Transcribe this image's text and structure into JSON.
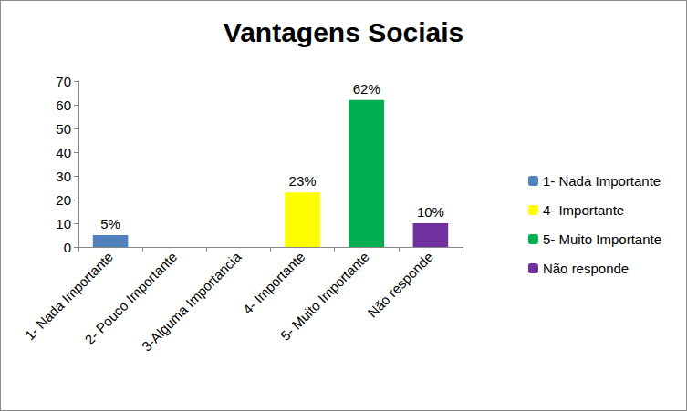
{
  "chart_data": {
    "type": "bar",
    "title": "Vantagens Sociais",
    "categories": [
      "1- Nada Importante",
      "2- Pouco Importante",
      "3-Alguma Importancia",
      "4- Importante",
      "5- Muito Importante",
      "Não responde"
    ],
    "values": [
      5,
      null,
      null,
      23,
      62,
      10
    ],
    "value_labels": [
      "5%",
      null,
      null,
      "23%",
      "62%",
      "10%"
    ],
    "colors": [
      "#4f81bd",
      null,
      null,
      "#ffff00",
      "#00b050",
      "#7030a0"
    ],
    "ylim": [
      0,
      70
    ],
    "yticks": [
      0,
      10,
      20,
      30,
      40,
      50,
      60,
      70
    ],
    "grid": false,
    "legend": "right",
    "data_labels": true
  }
}
